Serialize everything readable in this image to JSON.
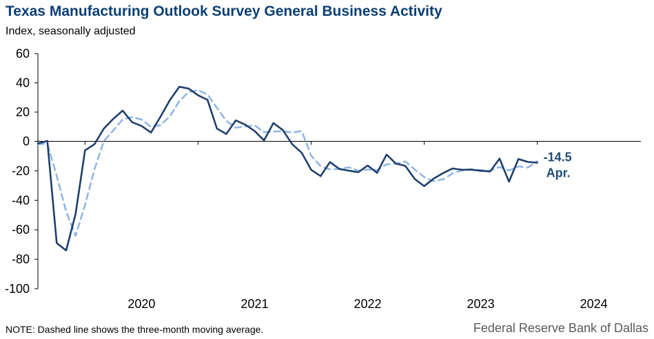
{
  "chart_data": {
    "type": "line",
    "title": "Texas Manufacturing Outlook Survey General Business Activity",
    "subtitle": "Index, seasonally adjusted",
    "ylim": [
      -100,
      60
    ],
    "yticks": [
      60,
      40,
      20,
      0,
      -20,
      -40,
      -60,
      -80,
      -100
    ],
    "x_start": "2019-08",
    "x_end": "2024-12",
    "xtick_labels": [
      "2020",
      "2021",
      "2022",
      "2023",
      "2024"
    ],
    "grid": false,
    "series": [
      {
        "style": "solid",
        "color": "#1f3f6e",
        "values": [
          -1.5,
          0.3,
          -69.0,
          -74.0,
          -49.2,
          -6.1,
          -2.0,
          8.7,
          15.4,
          21.0,
          13.1,
          10.5,
          6.0,
          16.7,
          28.1,
          37.3,
          36.1,
          31.5,
          28.4,
          8.7,
          5.0,
          14.3,
          11.4,
          7.0,
          0.6,
          12.5,
          7.6,
          -2.0,
          -7.8,
          -19.3,
          -23.6,
          -14.1,
          -18.8,
          -19.9,
          -21.0,
          -16.4,
          -21.4,
          -9.0,
          -15.1,
          -16.7,
          -25.6,
          -30.4,
          -25.3,
          -21.6,
          -18.4,
          -19.3,
          -19.2,
          -20.0,
          -20.4,
          -11.7,
          -27.4,
          -12.0,
          -14.0,
          -14.5
        ],
        "values_end_label": "-14.5",
        "month_label": "Apr."
      },
      {
        "style": "dashed",
        "color": "#8db4e2",
        "values": [
          -2.0,
          -1.5,
          -23.4,
          -47.6,
          -64.1,
          -43.1,
          -19.1,
          0.2,
          7.4,
          15.0,
          16.5,
          14.9,
          9.9,
          11.1,
          17.0,
          27.4,
          33.8,
          35.0,
          32.0,
          22.9,
          14.0,
          9.3,
          10.2,
          10.9,
          6.3,
          6.7,
          6.9,
          6.0,
          7.0,
          -9.7,
          -16.9,
          -19.0,
          -18.8,
          -17.6,
          -19.9,
          -19.1,
          -19.6,
          -15.6,
          -15.2,
          -13.6,
          -19.1,
          -24.2,
          -27.1,
          -25.8,
          -21.8,
          -19.8,
          -19.0,
          -19.5,
          -19.9,
          -17.4,
          -19.8,
          -17.0,
          -17.8,
          -13.5
        ]
      }
    ],
    "annotations": [
      {
        "text": "-14.5",
        "color": "#1f4e79"
      },
      {
        "text": "Apr.",
        "color": "#1f4e79"
      }
    ]
  },
  "note": "NOTE: Dashed line shows the three-month  moving average.",
  "source": "Federal Reserve Bank of Dallas"
}
